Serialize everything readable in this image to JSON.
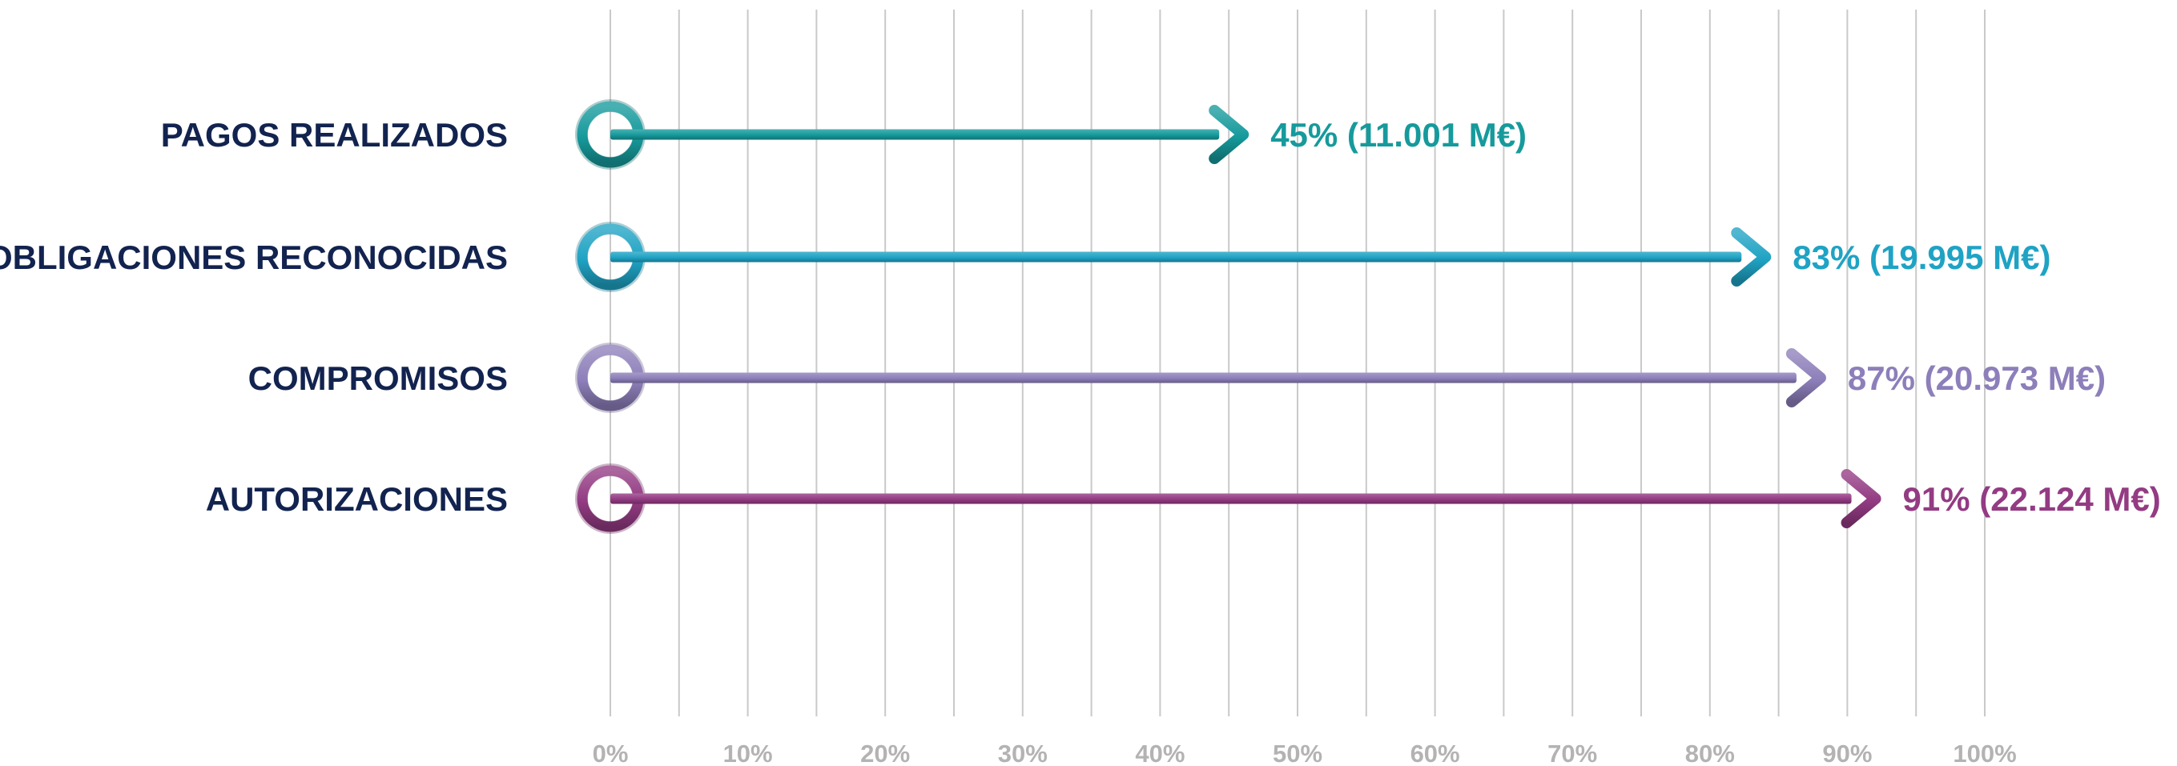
{
  "chart_data": {
    "type": "bar",
    "orientation": "horizontal",
    "style": "arrow",
    "categories": [
      "PAGOS REALIZADOS",
      "OBLIGACIONES RECONOCIDAS",
      "COMPROMISOS",
      "AUTORIZACIONES"
    ],
    "values": [
      45,
      83,
      87,
      91
    ],
    "value_labels": [
      "45% (11.001 M€)",
      "83% (19.995 M€)",
      "87% (20.973 M€)",
      "91% (22.124 M€)"
    ],
    "colors": [
      "#169a9c",
      "#1fa3c4",
      "#8d7fba",
      "#933b83"
    ],
    "xlim": [
      0,
      100
    ],
    "x_ticks": [
      0,
      5,
      10,
      15,
      20,
      25,
      30,
      35,
      40,
      45,
      50,
      55,
      60,
      65,
      70,
      75,
      80,
      85,
      90,
      95,
      100
    ],
    "x_tick_labels": [
      "0%",
      "10%",
      "20%",
      "30%",
      "40%",
      "50%",
      "60%",
      "70%",
      "80%",
      "90%",
      "100%"
    ],
    "x_tick_label_values": [
      0,
      10,
      20,
      30,
      40,
      50,
      60,
      70,
      80,
      90,
      100
    ],
    "grid": true,
    "title": "",
    "xlabel": "",
    "ylabel": ""
  }
}
